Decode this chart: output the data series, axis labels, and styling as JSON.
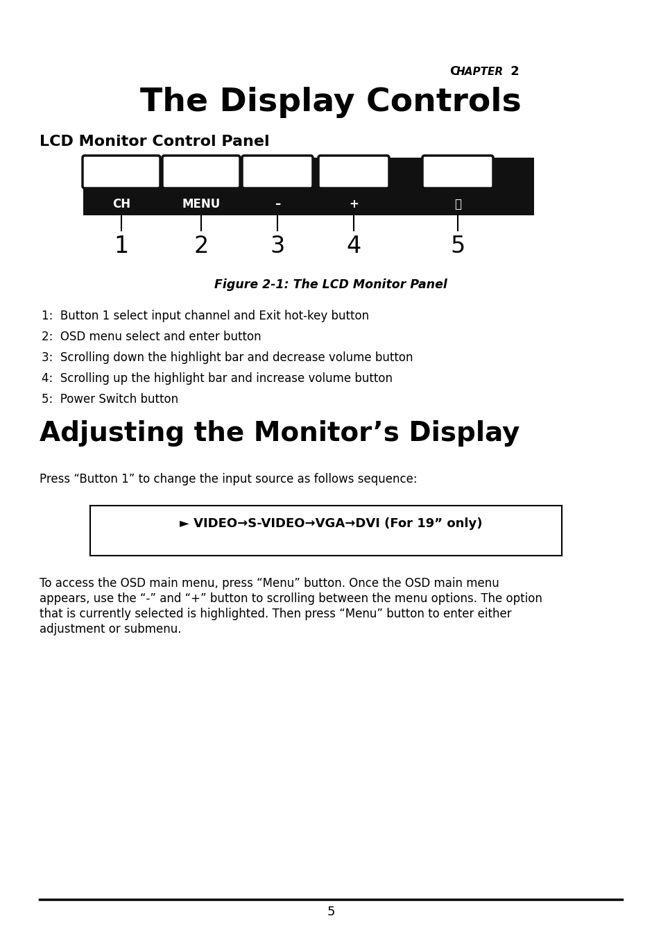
{
  "chapter_text": "CHAPTER 2",
  "title": "The Display Controls",
  "section1_title": "LCD Monitor Control Panel",
  "figure_caption": "Figure 2-1: The LCD Monitor Panel",
  "button_labels": [
    "CH",
    "MENU",
    "–",
    "+",
    "⏻"
  ],
  "button_numbers": [
    "1",
    "2",
    "3",
    "4",
    "5"
  ],
  "list_items": [
    "1:  Button 1 select input channel and Exit hot-key button",
    "2:  OSD menu select and enter button",
    "3:  Scrolling down the highlight bar and decrease volume button",
    "4:  Scrolling up the highlight bar and increase volume button",
    "5:  Power Switch button"
  ],
  "section2_title": "Adjusting the Monitor’s Display",
  "press_text": "Press “Button 1” to change the input source as follows sequence:",
  "sequence_text": "► VIDEO→S-VIDEO→VGA→DVI (For 19” only)",
  "body_text": "To access the OSD main menu, press “Menu” button. Once the OSD main menu\nappears, use the “-” and “+” button to scrolling between the menu options. The option\nthat is currently selected is highlighted. Then press “Menu” button to enter either\nadjustment or submenu.",
  "page_number": "5",
  "bg_color": "#ffffff",
  "text_color": "#000000",
  "panel_bg": "#111111"
}
